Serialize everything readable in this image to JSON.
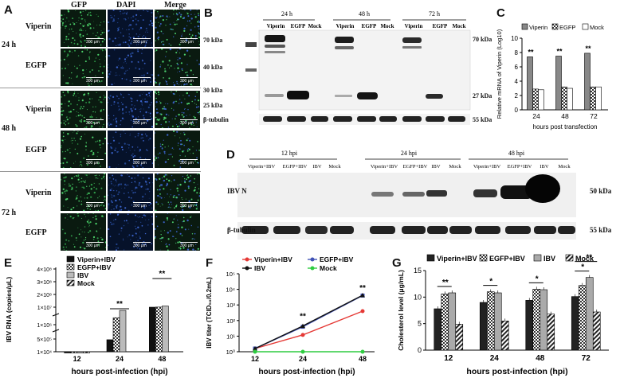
{
  "panelA": {
    "label": "A",
    "columns": [
      "GFP",
      "DAPI",
      "Merge"
    ],
    "times": [
      "24 h",
      "48 h",
      "72 h"
    ],
    "rows": [
      "Viperin",
      "EGFP"
    ],
    "scale_text": "300 μm"
  },
  "panelB": {
    "label": "B",
    "times": [
      "24 h",
      "48 h",
      "72 h"
    ],
    "lanes": [
      "Viperin",
      "EGFP",
      "Mock"
    ],
    "markers_left": [
      "70 kDa",
      "40 kDa",
      "30 kDa",
      "25 kDa"
    ],
    "markers_right": [
      "70 kDa",
      "27 kDa",
      "55 kDa"
    ],
    "loading": "β-tubulin"
  },
  "panelC": {
    "label": "C",
    "chart_data": {
      "type": "bar",
      "categories": [
        "24",
        "48",
        "72"
      ],
      "series": [
        {
          "name": "Viperin",
          "values": [
            7.4,
            7.5,
            7.9
          ]
        },
        {
          "name": "EGFP",
          "values": [
            2.9,
            3.2,
            3.2
          ]
        },
        {
          "name": "Mock",
          "values": [
            2.8,
            3.0,
            3.2
          ]
        }
      ],
      "ylim": [
        0,
        10
      ],
      "yticks": [
        0,
        2,
        4,
        6,
        8,
        10
      ],
      "ylabel": "Relative mRNA of Viperin (Log10)",
      "xlabel": "hours post transfection",
      "sig": [
        "**",
        "**",
        "**"
      ],
      "legend": "top"
    }
  },
  "panelD": {
    "label": "D",
    "times": [
      "12 hpi",
      "24 hpi",
      "48 hpi"
    ],
    "lanes": [
      "Viperin+IBV",
      "EGFP+IBV",
      "IBV",
      "Mock"
    ],
    "rows": [
      "IBV N",
      "β-tubulin"
    ],
    "markers": [
      "50 kDa",
      "55 kDa"
    ]
  },
  "panelE": {
    "label": "E",
    "chart_data": {
      "type": "bar",
      "categories": [
        "12",
        "24",
        "48"
      ],
      "series": [
        {
          "name": "Viperin+IBV",
          "values": [
            10000,
            400000,
            10000000
          ]
        },
        {
          "name": "EGFP+IBV",
          "values": [
            10000,
            2500000,
            10300000
          ]
        },
        {
          "name": "IBV",
          "values": [
            10000,
            6500000,
            13200000
          ]
        },
        {
          "name": "Mock",
          "values": [
            10000,
            0,
            0
          ]
        }
      ],
      "yticks": [
        "1×10⁴",
        "5×10⁵",
        "1×10⁶",
        "1×10⁷",
        "2×10⁸",
        "3×10⁸",
        "4×10⁸"
      ],
      "ylabel": "IBV RNA (copies/μL)",
      "xlabel": "hours post-infection (hpi)",
      "sig": [
        "**",
        "**"
      ],
      "legend": "top-left"
    }
  },
  "panelF": {
    "label": "F",
    "chart_data": {
      "type": "line",
      "x": [
        "12",
        "24",
        "48"
      ],
      "series": [
        {
          "name": "Viperin+IBV",
          "color": "#e53935",
          "values": [
            1.6,
            12,
            400
          ]
        },
        {
          "name": "EGFP+IBV",
          "color": "#3f51b5",
          "values": [
            1.6,
            40,
            4000
          ]
        },
        {
          "name": "IBV",
          "color": "#111111",
          "values": [
            1.6,
            45,
            4200
          ]
        },
        {
          "name": "Mock",
          "color": "#2ecc40",
          "values": [
            1,
            1,
            1
          ]
        }
      ],
      "yscale": "log",
      "yticks": [
        "10⁰",
        "10¹",
        "10²",
        "10³",
        "10⁴",
        "10⁵"
      ],
      "ylabel": "IBV titer (TCID₅₀/0.2mL)",
      "xlabel": "hours post-infection (hpi)",
      "sig": [
        "**",
        "**"
      ],
      "legend": "top-left"
    }
  },
  "panelG": {
    "label": "G",
    "chart_data": {
      "type": "bar",
      "categories": [
        "12",
        "24",
        "48",
        "72"
      ],
      "series": [
        {
          "name": "Viperin+IBV",
          "values": [
            7.8,
            9.0,
            9.4,
            10.1
          ]
        },
        {
          "name": "EGFP+IBV",
          "values": [
            10.6,
            11.0,
            11.5,
            12.2
          ]
        },
        {
          "name": "IBV",
          "values": [
            10.8,
            10.8,
            11.4,
            13.7
          ]
        },
        {
          "name": "Mock",
          "values": [
            4.9,
            5.5,
            6.8,
            7.2
          ]
        }
      ],
      "ylim": [
        0,
        15
      ],
      "yticks": [
        0,
        5,
        10,
        15
      ],
      "ylabel": "Cholesterol level (μg/mL)",
      "xlabel": "hours post-infection (hpi)",
      "sig": [
        "**",
        "*",
        "*",
        "*",
        "**"
      ],
      "legend": "top"
    }
  }
}
